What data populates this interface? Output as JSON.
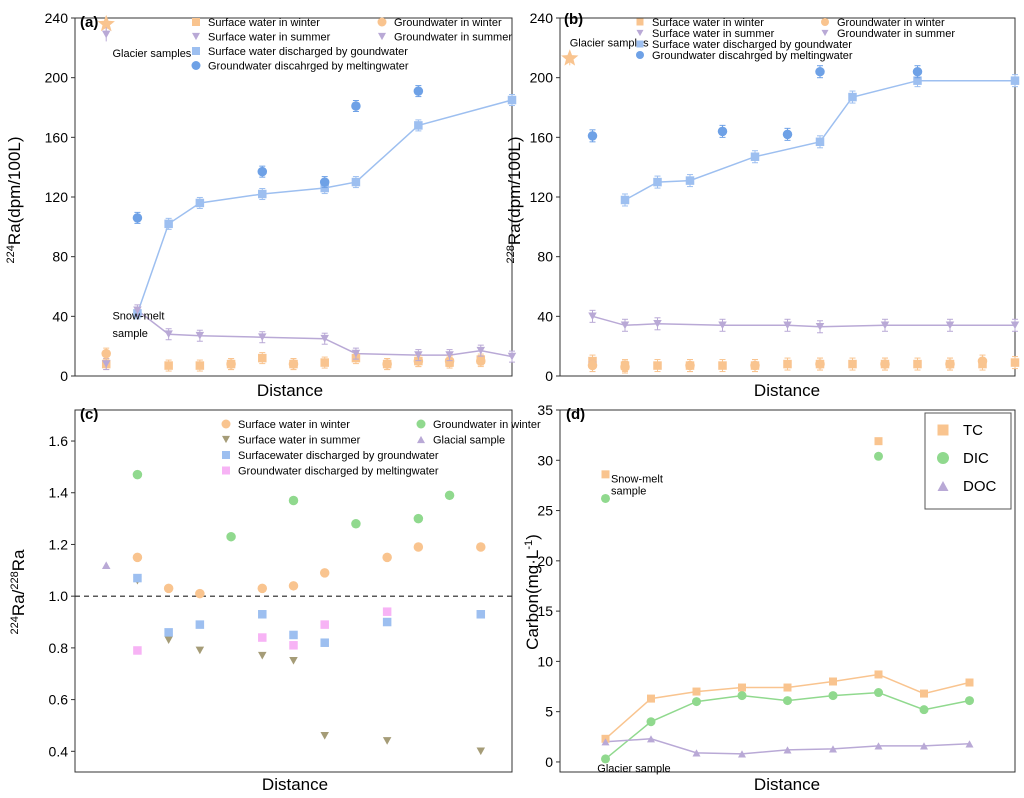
{
  "chart_data": [
    {
      "panel": "(a)",
      "type": "scatter",
      "xlabel": "Distance",
      "ylabel_parts": [
        "224",
        "Ra(dpm/100L)"
      ],
      "ylim": [
        0,
        240
      ],
      "yticks": [
        0,
        40,
        80,
        120,
        160,
        200,
        240
      ],
      "xlim": [
        0,
        14
      ],
      "annotations": [
        {
          "text": "Glacier samples",
          "x": 1.2,
          "y": 214
        },
        {
          "text": "Snow-melt",
          "x": 1.2,
          "y": 38
        },
        {
          "text": "sample",
          "x": 1.2,
          "y": 26
        }
      ],
      "series": [
        {
          "name": "Surface water in winter",
          "marker": "square",
          "color": "#f9c48f",
          "line": false,
          "x": [
            1,
            3,
            4,
            5,
            6,
            7,
            8,
            9,
            10,
            11,
            12,
            13
          ],
          "y": [
            8,
            7,
            7,
            8,
            12,
            8,
            9,
            12,
            8,
            10,
            9,
            11
          ]
        },
        {
          "name": "Surface water in summer",
          "marker": "triangle-down",
          "color": "#b9a9d6",
          "line": false,
          "x": [
            1
          ],
          "y": [
            8
          ]
        },
        {
          "name": "Surface water discharged by goundwater",
          "marker": "square",
          "color": "#9dbff0",
          "line": true,
          "x": [
            2,
            3,
            4,
            6,
            8,
            9,
            11,
            14
          ],
          "y": [
            42,
            102,
            116,
            122,
            126,
            130,
            168,
            185
          ]
        },
        {
          "name": "Groundwater in winter",
          "marker": "circle",
          "color": "#f9c48f",
          "line": false,
          "x": [
            1,
            5,
            7,
            10,
            11,
            12,
            13
          ],
          "y": [
            15,
            8,
            8,
            8,
            10,
            10,
            10
          ]
        },
        {
          "name": "Groundwater in summer",
          "marker": "triangle-down",
          "color": "#b9a9d6",
          "line": true,
          "x": [
            2,
            3,
            4,
            6,
            8,
            9,
            11,
            12,
            13,
            14
          ],
          "y": [
            44,
            28,
            27,
            26,
            25,
            15,
            14,
            14,
            17,
            13
          ]
        },
        {
          "name": "Groundwater discahrged by meltingwater",
          "marker": "circle",
          "color": "#6ea1e6",
          "line": false,
          "x": [
            2,
            6,
            8,
            9,
            11
          ],
          "y": [
            106,
            137,
            130,
            181,
            191
          ]
        }
      ],
      "extra_markers": [
        {
          "marker": "star",
          "color": "#f9c48f",
          "x": 1,
          "y": 236
        },
        {
          "marker": "triangle-down",
          "color": "#b9a9d6",
          "x": 1,
          "y": 229
        }
      ]
    },
    {
      "panel": "(b)",
      "type": "scatter",
      "xlabel": "Distance",
      "ylabel_parts": [
        "228",
        "Ra(dpm/100L)"
      ],
      "ylim": [
        0,
        240
      ],
      "yticks": [
        0,
        40,
        80,
        120,
        160,
        200,
        240
      ],
      "xlim": [
        0,
        14
      ],
      "annotations": [
        {
          "text": "Glacier samples",
          "x": 0.3,
          "y": 221
        }
      ],
      "series": [
        {
          "name": "Surface water in winter",
          "marker": "square",
          "color": "#f9c48f",
          "line": false,
          "x": [
            1,
            2,
            3,
            4,
            5,
            6,
            7,
            8,
            9,
            10,
            11,
            12,
            13,
            14
          ],
          "y": [
            10,
            7,
            7,
            7,
            7,
            7,
            8,
            8,
            8,
            8,
            8,
            8,
            8,
            9
          ]
        },
        {
          "name": "Surface water in summer",
          "marker": "triangle-down",
          "color": "#b9a9d6",
          "line": false,
          "x": [
            1
          ],
          "y": [
            7
          ]
        },
        {
          "name": "Surface water discharged by goundwater",
          "marker": "square",
          "color": "#9dbff0",
          "line": true,
          "x": [
            2,
            3,
            4,
            6,
            8,
            9,
            11,
            14
          ],
          "y": [
            118,
            130,
            131,
            147,
            157,
            187,
            198,
            198
          ]
        },
        {
          "name": "Groundwater in winter",
          "marker": "circle",
          "color": "#f9c48f",
          "line": false,
          "x": [
            1,
            2,
            4,
            6,
            8,
            10,
            12,
            13
          ],
          "y": [
            7,
            6,
            7,
            7,
            8,
            8,
            8,
            10
          ]
        },
        {
          "name": "Groundwater in summer",
          "marker": "triangle-down",
          "color": "#b9a9d6",
          "line": true,
          "x": [
            1,
            2,
            3,
            5,
            7,
            8,
            10,
            12,
            14
          ],
          "y": [
            40,
            34,
            35,
            34,
            34,
            33,
            34,
            34,
            34
          ]
        },
        {
          "name": "Groundwater discahrged by meltingwater",
          "marker": "circle",
          "color": "#6ea1e6",
          "line": false,
          "x": [
            1,
            5,
            7,
            8,
            11
          ],
          "y": [
            161,
            164,
            162,
            204,
            204
          ]
        }
      ],
      "extra_markers": [
        {
          "marker": "star",
          "color": "#f9c48f",
          "x": 0.3,
          "y": 213
        }
      ]
    },
    {
      "panel": "(c)",
      "type": "scatter",
      "xlabel": "Distance",
      "ylabel_parts": [
        "224",
        "Ra/",
        "228",
        "Ra"
      ],
      "ylim": [
        0.32,
        1.72
      ],
      "yticks": [
        0.4,
        0.6,
        0.8,
        1.0,
        1.2,
        1.4,
        1.6
      ],
      "xlim": [
        0,
        14
      ],
      "reference_line": 1.0,
      "series": [
        {
          "name": "Surface water in winter",
          "marker": "circle",
          "color": "#f9c48f",
          "x": [
            2,
            3,
            4,
            6,
            7,
            8,
            10,
            11,
            13
          ],
          "y": [
            1.15,
            1.03,
            1.01,
            1.03,
            1.04,
            1.09,
            1.15,
            1.19,
            1.19
          ]
        },
        {
          "name": "Groundwater in winter",
          "marker": "circle",
          "color": "#90d98e",
          "x": [
            2,
            5,
            7,
            9,
            11,
            12
          ],
          "y": [
            1.47,
            1.23,
            1.37,
            1.28,
            1.3,
            1.39
          ]
        },
        {
          "name": "Surface water in summer",
          "marker": "triangle-down",
          "color": "#a59c77",
          "x": [
            2,
            3,
            4,
            6,
            7,
            8,
            10
          ],
          "y": [
            1.06,
            0.83,
            0.79,
            0.77,
            0.75,
            0.46,
            0.44
          ]
        },
        {
          "name": "Glacial sample",
          "marker": "triangle-up",
          "color": "#b9a9d6",
          "x": [
            1
          ],
          "y": [
            1.12
          ]
        },
        {
          "name": "Surfacewater discharged by groundwater",
          "marker": "square",
          "color": "#9dbff0",
          "x": [
            2,
            3,
            4,
            6,
            7,
            8,
            10,
            13
          ],
          "y": [
            1.07,
            0.86,
            0.89,
            0.93,
            0.85,
            0.82,
            0.9,
            0.93
          ]
        },
        {
          "name": "Groundwater discharged by meltingwater",
          "marker": "square",
          "color": "#f7b3f5",
          "x": [
            2,
            6,
            7,
            8,
            10
          ],
          "y": [
            0.79,
            0.84,
            0.81,
            0.89,
            0.94
          ]
        }
      ],
      "extra_markers": [
        {
          "marker": "triangle-down",
          "color": "#a59c77",
          "x": 13,
          "y": 0.4
        }
      ]
    },
    {
      "panel": "(d)",
      "type": "line",
      "xlabel": "Distance",
      "ylabel": "Carbon(mg·L",
      "ylabel_sup": "-1",
      "ylabel_end": ")",
      "ylim": [
        -1,
        35
      ],
      "yticks": [
        0,
        5,
        10,
        15,
        20,
        25,
        30,
        35
      ],
      "xlim": [
        0,
        10
      ],
      "annotations": [
        {
          "text": "Snow-melt",
          "x": 1.12,
          "y": 27.8
        },
        {
          "text": "sample",
          "x": 1.12,
          "y": 26.6
        },
        {
          "text": "Glacier sample",
          "x": 0.82,
          "y": -1.0
        }
      ],
      "series": [
        {
          "name": "TC",
          "marker": "square",
          "color": "#f9c48f",
          "x": [
            1,
            2,
            3,
            4,
            5,
            6,
            7,
            8,
            9
          ],
          "y": [
            2.3,
            6.3,
            7.0,
            7.4,
            7.4,
            8.0,
            8.7,
            6.8,
            7.9
          ]
        },
        {
          "name": "DIC",
          "marker": "circle",
          "color": "#90d98e",
          "x": [
            1,
            2,
            3,
            4,
            5,
            6,
            7,
            8,
            9
          ],
          "y": [
            0.3,
            4.0,
            6.0,
            6.6,
            6.1,
            6.6,
            6.9,
            5.2,
            6.1
          ]
        },
        {
          "name": "DOC",
          "marker": "triangle-up",
          "color": "#b9a9d6",
          "x": [
            1,
            2,
            3,
            4,
            5,
            6,
            7,
            8,
            9
          ],
          "y": [
            2.0,
            2.3,
            0.9,
            0.8,
            1.2,
            1.3,
            1.6,
            1.6,
            1.8
          ]
        }
      ],
      "extra_markers": [
        {
          "marker": "square",
          "color": "#f9c48f",
          "x": 1.0,
          "y": 28.6
        },
        {
          "marker": "circle",
          "color": "#90d98e",
          "x": 1.0,
          "y": 26.2
        },
        {
          "marker": "square",
          "color": "#f9c48f",
          "x": 7.0,
          "y": 31.9
        },
        {
          "marker": "circle",
          "color": "#90d98e",
          "x": 7.0,
          "y": 30.4
        }
      ]
    }
  ]
}
